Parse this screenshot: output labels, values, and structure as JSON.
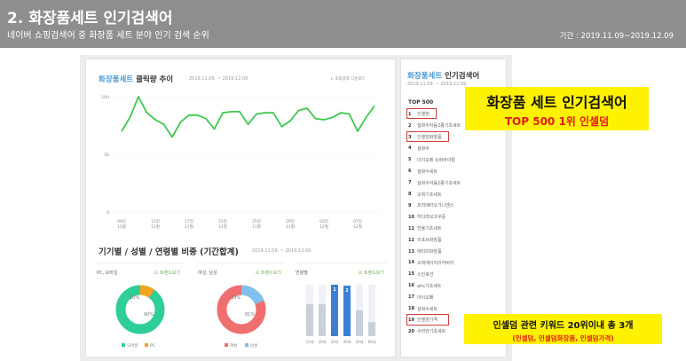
{
  "header": {
    "title": "2. 화장품세트 인기검색어",
    "subtitle": "네이버 쇼핑검색어 중 화장품 세트 분야 인기 검색 순위",
    "period": "기간 : 2019.11.09~2019.12.09"
  },
  "click_trend": {
    "title_accent": "화장품세트",
    "title_rest": " 클릭량 추이",
    "date_range": "2019.11.09. ~ 2019.12.09.",
    "download_label": "↓ 조회결과 다운로드"
  },
  "chart_data": {
    "type": "line",
    "x": [
      "09일",
      "10일",
      "11일",
      "12일",
      "13일",
      "14일",
      "15일",
      "16일",
      "17일",
      "18일",
      "19일",
      "20일",
      "21일",
      "22일",
      "23일",
      "24일",
      "25일",
      "26일",
      "27일",
      "28일",
      "29일",
      "30일",
      "01일",
      "02일",
      "03일",
      "04일",
      "05일",
      "06일",
      "07일",
      "08일",
      "09일"
    ],
    "series": [
      {
        "values": [
          70,
          82,
          100,
          86,
          80,
          76,
          65,
          78,
          84,
          84,
          81,
          72,
          86,
          87,
          87,
          76,
          85,
          86,
          86,
          74,
          79,
          88,
          90,
          81,
          80,
          82,
          86,
          85,
          70,
          82,
          92
        ]
      }
    ],
    "ylim": [
      0,
      100
    ],
    "yticks": [
      0,
      50,
      100
    ],
    "xticks": [
      {
        "day": "09일",
        "month": "11월"
      },
      {
        "day": "13일",
        "month": "11월"
      },
      {
        "day": "17일",
        "month": "11월"
      },
      {
        "day": "21일",
        "month": "11월"
      },
      {
        "day": "25일",
        "month": "11월"
      },
      {
        "day": "29일",
        "month": "11월"
      },
      {
        "day": "03일",
        "month": "12월"
      },
      {
        "day": "07일",
        "month": "12월"
      }
    ],
    "line_color": "#3fc94f"
  },
  "breakdown": {
    "title": "기기별 / 성별 / 연령별 비중 (기간합계)",
    "date_range": "2019.11.09. ~ 2019.12.09.",
    "device": {
      "label": "PC, 모바일",
      "link": "☑ 트렌드보기",
      "mobile_pct": "90%",
      "pc_pct": "10%",
      "mobile_share": 0.9,
      "legend": [
        "모바일",
        "PC"
      ],
      "colors": {
        "mobile": "#2ecf96",
        "pc": "#f7a21b"
      }
    },
    "gender": {
      "label": "여성, 남성",
      "link": "☑ 트렌드보기",
      "female_pct": "81%",
      "male_pct": "19%",
      "female_share": 0.81,
      "legend": [
        "여성",
        "남성"
      ],
      "colors": {
        "female": "#ef6f6f",
        "male": "#7fc1ee"
      }
    },
    "age": {
      "label": "연령별",
      "link": "☑ 트렌드보기",
      "categories": [
        "10대",
        "20대",
        "30대",
        "40대",
        "50대",
        "60대"
      ],
      "values": [
        0.62,
        0.62,
        1.0,
        0.98,
        0.5,
        0.27
      ],
      "badges": [
        "1",
        "2"
      ],
      "colors": {
        "top": "#3b7fd6",
        "other": "#c8d0db"
      }
    }
  },
  "ranking": {
    "title_accent": "화장품세트",
    "title_rest": " 인기검색어",
    "date_range": "2019.11.09. ~ 2019.12.09.",
    "top_label": "TOP 500",
    "items": [
      {
        "num": "1",
        "keyword": "인셀덤"
      },
      {
        "num": "2",
        "keyword": "설화수자음2종기초세트"
      },
      {
        "num": "3",
        "keyword": "인셀덤화장품"
      },
      {
        "num": "4",
        "keyword": "설화수"
      },
      {
        "num": "5",
        "keyword": "더이오페 슈퍼바이탈"
      },
      {
        "num": "6",
        "keyword": "설화수세트"
      },
      {
        "num": "7",
        "keyword": "설화수자음2종기초세트"
      },
      {
        "num": "8",
        "keyword": "오휘기초세트"
      },
      {
        "num": "9",
        "keyword": "프리메라오가니엔스"
      },
      {
        "num": "10",
        "keyword": "하다라보고쿠쥰"
      },
      {
        "num": "11",
        "keyword": "한율기초세트"
      },
      {
        "num": "12",
        "keyword": "리포브화장품"
      },
      {
        "num": "13",
        "keyword": "에티미화장품"
      },
      {
        "num": "14",
        "keyword": "오휘에이지리커버리"
      },
      {
        "num": "15",
        "keyword": "스킨로션"
      },
      {
        "num": "16",
        "keyword": "ahc기초세트"
      },
      {
        "num": "17",
        "keyword": "아이오페"
      },
      {
        "num": "18",
        "keyword": "설화수세트"
      },
      {
        "num": "19",
        "keyword": "인셀덤가격"
      },
      {
        "num": "20",
        "keyword": "수려한기초세트"
      }
    ],
    "highlight_color": "#d23b3b"
  },
  "callout_top": {
    "line1": "화장품 세트 인기검색어",
    "line2": "TOP 500 1위 인셀덤"
  },
  "callout_bottom": {
    "line1": "인셀덤 관련 키워드 20위이내 총 3개",
    "line2": "(인셀덤, 인셀덤화장품, 인셀덤가격)"
  }
}
